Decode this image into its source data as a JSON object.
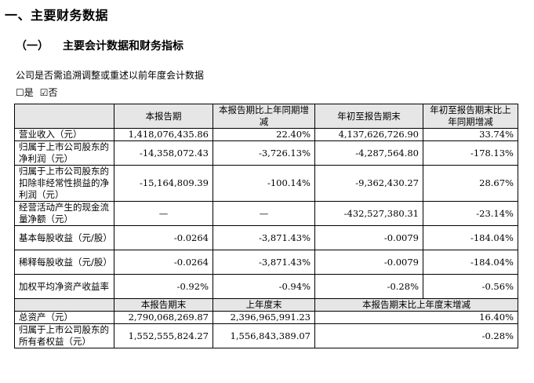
{
  "section_title": "一、主要财务数据",
  "subsection": {
    "number": "（一）",
    "title": "主要会计数据和财务指标"
  },
  "restate_question": "公司是否需追溯调整或重述以前年度会计数据",
  "restate_options": {
    "yes_box": "☐",
    "yes_label": "是",
    "no_box": "☑",
    "no_label": "否"
  },
  "table1": {
    "headers": [
      "",
      "本报告期",
      "本报告期比上年同期增减",
      "年初至报告期末",
      "年初至报告期末比上年同期增减"
    ],
    "rows": [
      {
        "label": "营业收入（元）",
        "values": [
          "1,418,076,435.86",
          "22.40%",
          "4,137,626,726.90",
          "33.74%"
        ]
      },
      {
        "label": "归属于上市公司股东的净利润（元）",
        "values": [
          "-14,358,072.43",
          "-3,726.13%",
          "-4,287,564.80",
          "-178.13%"
        ]
      },
      {
        "label": "归属于上市公司股东的扣除非经常性损益的净利润（元）",
        "values": [
          "-15,164,809.39",
          "-100.14%",
          "-9,362,430.27",
          "28.67%"
        ]
      },
      {
        "label": "经营活动产生的现金流量净额（元）",
        "values": [
          "—",
          "—",
          "-432,527,380.31",
          "-23.14%"
        ]
      },
      {
        "label": "基本每股收益（元/股）",
        "values": [
          "-0.0264",
          "-3,871.43%",
          "-0.0079",
          "-184.04%"
        ]
      },
      {
        "label": "稀释每股收益（元/股）",
        "values": [
          "-0.0264",
          "-3,871.43%",
          "-0.0079",
          "-184.04%"
        ]
      },
      {
        "label": "加权平均净资产收益率",
        "values": [
          "-0.92%",
          "-0.94%",
          "-0.28%",
          "-0.56%"
        ]
      }
    ]
  },
  "table2": {
    "headers": [
      "",
      "本报告期末",
      "上年度末",
      "本报告期末比上年度末增减"
    ],
    "rows": [
      {
        "label": "总资产（元）",
        "values": [
          "2,790,068,269.87",
          "2,396,965,991.23",
          "16.40%"
        ]
      },
      {
        "label": "归属于上市公司股东的所有者权益（元）",
        "values": [
          "1,552,555,824.27",
          "1,556,843,389.07",
          "-0.28%"
        ]
      }
    ]
  }
}
